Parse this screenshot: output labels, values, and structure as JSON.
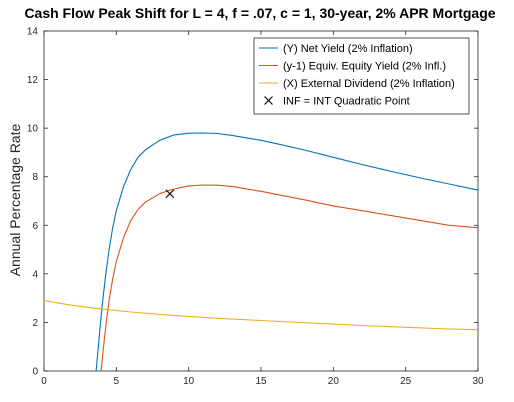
{
  "chart_data": {
    "type": "line",
    "title": "Cash Flow Peak Shift for L = 4, f = .07, c = 1, 30-year, 2% APR Mortgage",
    "xlabel": "",
    "ylabel": "Annual Percentage Rate",
    "xlim": [
      0,
      30
    ],
    "ylim": [
      0,
      14
    ],
    "xticks": [
      0,
      5,
      10,
      15,
      20,
      25,
      30
    ],
    "yticks": [
      0,
      2,
      4,
      6,
      8,
      10,
      12,
      14
    ],
    "grid": false,
    "legend_position": "top-right",
    "series": [
      {
        "name": "(Y) Net Yield (2% Inflation)",
        "color": "#0072BD",
        "x": [
          3.6,
          3.8,
          4.0,
          4.25,
          4.5,
          4.75,
          5.0,
          5.5,
          6.0,
          6.5,
          7.0,
          8.0,
          9.0,
          10.0,
          11.0,
          12.0,
          13.0,
          14.0,
          15.0,
          16.0,
          18.0,
          20.0,
          22.0,
          24.0,
          26.0,
          28.0,
          30.0
        ],
        "y": [
          0.0,
          1.3,
          2.6,
          3.9,
          5.0,
          5.9,
          6.6,
          7.6,
          8.3,
          8.8,
          9.1,
          9.5,
          9.72,
          9.79,
          9.8,
          9.78,
          9.7,
          9.6,
          9.5,
          9.37,
          9.1,
          8.8,
          8.5,
          8.22,
          7.95,
          7.7,
          7.45
        ]
      },
      {
        "name": "(y-1) Equiv. Equity Yield (2% Infl.)",
        "color": "#D95319",
        "x": [
          3.95,
          4.1,
          4.3,
          4.5,
          4.75,
          5.0,
          5.5,
          6.0,
          6.5,
          7.0,
          8.0,
          8.7,
          9.5,
          10.0,
          11.0,
          12.0,
          13.0,
          14.0,
          15.0,
          16.0,
          18.0,
          20.0,
          22.0,
          24.0,
          26.0,
          28.0,
          30.0
        ],
        "y": [
          0.0,
          0.9,
          2.0,
          2.9,
          3.8,
          4.5,
          5.5,
          6.2,
          6.65,
          6.95,
          7.3,
          7.45,
          7.56,
          7.62,
          7.66,
          7.65,
          7.6,
          7.5,
          7.4,
          7.28,
          7.05,
          6.8,
          6.6,
          6.4,
          6.2,
          6.0,
          5.9
        ]
      },
      {
        "name": "(X) External Dividend (2% Inflation)",
        "color": "#EDB120",
        "x": [
          0,
          2,
          4,
          6,
          8,
          10,
          12,
          15,
          18,
          20,
          22,
          25,
          28,
          30
        ],
        "y": [
          2.9,
          2.7,
          2.55,
          2.43,
          2.33,
          2.25,
          2.17,
          2.08,
          1.99,
          1.93,
          1.87,
          1.8,
          1.73,
          1.7
        ]
      }
    ],
    "markers": [
      {
        "name": "INF = INT Quadratic Point",
        "symbol": "x",
        "x": 8.7,
        "y": 7.3
      }
    ]
  }
}
